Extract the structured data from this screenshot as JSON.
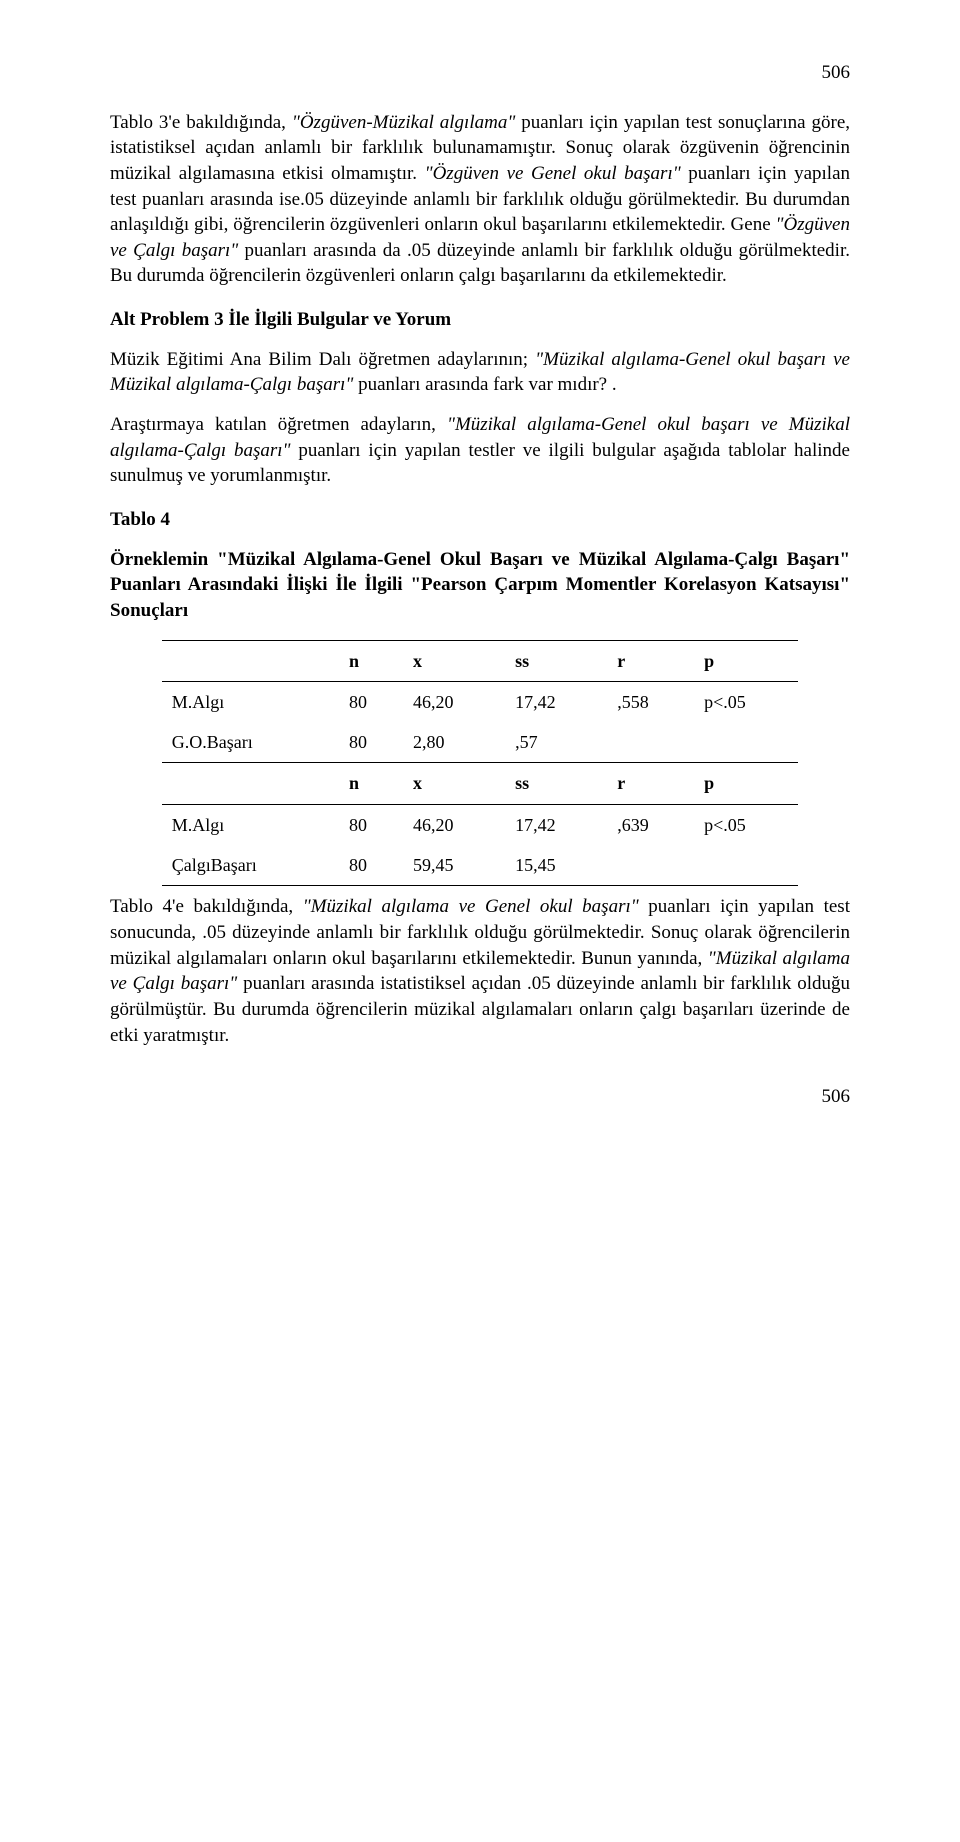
{
  "page_number_top": "506",
  "page_number_bottom": "506",
  "para1_a": "Tablo 3'e bakıldığında, ",
  "para1_b": "\"Özgüven-Müzikal algılama\"",
  "para1_c": " puanları için yapılan test sonuçlarına göre, istatistiksel açıdan anlamlı bir farklılık bulunamamıştır. Sonuç olarak özgüvenin öğrencinin müzikal algılamasına etkisi olmamıştır. ",
  "para1_d": "\"Özgüven ve Genel okul başarı\"",
  "para1_e": " puanları için yapılan test puanları arasında ise.05 düzeyinde anlamlı bir farklılık olduğu görülmektedir. Bu durumdan anlaşıldığı gibi, öğrencilerin özgüvenleri onların okul başarılarını etkilemektedir. Gene ",
  "para1_f": "\"Özgüven ve Çalgı başarı\"",
  "para1_g": " puanları arasında da .05 düzeyinde anlamlı bir farklılık olduğu görülmektedir. Bu durumda öğrencilerin özgüvenleri onların çalgı başarılarını da etkilemektedir.",
  "subhead": "Alt Problem 3 İle İlgili Bulgular ve Yorum",
  "para2_a": "Müzik Eğitimi Ana Bilim Dalı öğretmen adaylarının; ",
  "para2_b": "\"Müzikal algılama-Genel okul başarı ve Müzikal algılama-Çalgı başarı\"",
  "para2_c": " puanları arasında fark var mıdır? .",
  "para3_a": "Araştırmaya katılan öğretmen adayların, ",
  "para3_b": "\"Müzikal algılama-Genel okul başarı ve Müzikal algılama-Çalgı başarı\"",
  "para3_c": " puanları için yapılan testler ve ilgili bulgular aşağıda tablolar halinde sunulmuş ve yorumlanmıştır.",
  "table_label": "Tablo 4",
  "table_title": "Örneklemin \"Müzikal Algılama-Genel Okul Başarı ve Müzikal Algılama-Çalgı Başarı\" Puanları Arasındaki İlişki İle İlgili \"Pearson Çarpım Momentler Korelasyon Katsayısı\" Sonuçları",
  "table": {
    "headers": {
      "c0": "",
      "c1": "n",
      "c2": "x",
      "c3": "ss",
      "c4": "r",
      "c5": "p"
    },
    "rows": [
      {
        "label": "M.Algı",
        "n": "80",
        "x": "46,20",
        "ss": "17,42",
        "r": ",558",
        "p": "p<.05"
      },
      {
        "label": "G.O.Başarı",
        "n": "80",
        "x": "2,80",
        "ss": ",57",
        "r": "",
        "p": ""
      },
      {
        "label": "M.Algı",
        "n": "80",
        "x": "46,20",
        "ss": "17,42",
        "r": ",639",
        "p": "p<.05"
      },
      {
        "label": "ÇalgıBaşarı",
        "n": "80",
        "x": "59,45",
        "ss": "15,45",
        "r": "",
        "p": ""
      }
    ]
  },
  "para4_a": "Tablo 4'e bakıldığında, ",
  "para4_b": "\"Müzikal algılama ve Genel okul başarı\"",
  "para4_c": " puanları için yapılan test sonucunda, .05 düzeyinde anlamlı bir farklılık olduğu görülmektedir. Sonuç olarak öğrencilerin müzikal algılamaları onların okul başarılarını etkilemektedir. Bunun yanında, ",
  "para4_d": "\"Müzikal algılama ve Çalgı başarı\"",
  "para4_e": " puanları arasında istatistiksel açıdan .05 düzeyinde anlamlı bir farklılık olduğu görülmüştür. Bu durumda öğrencilerin müzikal algılamaları onların çalgı başarıları üzerinde de etki yaratmıştır."
}
